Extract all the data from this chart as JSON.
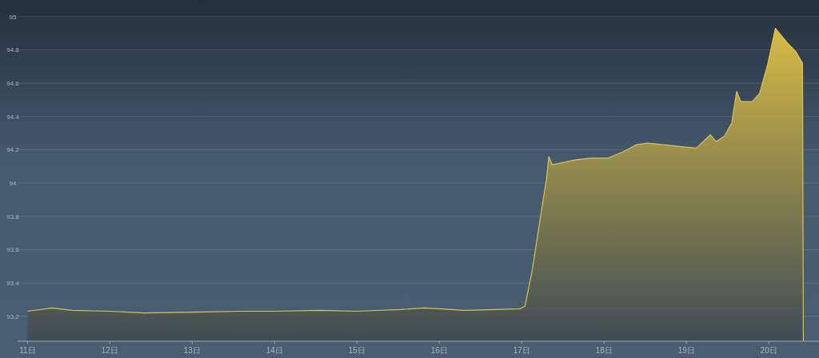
{
  "chart_data": {
    "type": "area",
    "grid": "y",
    "xlim": [
      10.88,
      20.61
    ],
    "ylim": [
      93.05,
      95.1
    ],
    "xticks": [
      {
        "value": 11,
        "label": "11日"
      },
      {
        "value": 12,
        "label": "12日"
      },
      {
        "value": 13,
        "label": "13日"
      },
      {
        "value": 14,
        "label": "14日"
      },
      {
        "value": 15,
        "label": "15日"
      },
      {
        "value": 16,
        "label": "16日"
      },
      {
        "value": 17,
        "label": "17日"
      },
      {
        "value": 18,
        "label": "18日"
      },
      {
        "value": 19,
        "label": "19日"
      },
      {
        "value": 20,
        "label": "20日"
      }
    ],
    "yticks": [
      93.2,
      93.4,
      93.6,
      93.8,
      94,
      94.2,
      94.4,
      94.6,
      94.8,
      95
    ],
    "x": [
      11.0,
      11.3,
      11.54,
      12.0,
      12.42,
      13.0,
      13.58,
      14.0,
      14.55,
      15.0,
      15.52,
      15.82,
      16.0,
      16.3,
      16.69,
      16.98,
      17.04,
      17.13,
      17.22,
      17.3,
      17.33,
      17.37,
      17.47,
      17.66,
      17.85,
      18.05,
      18.24,
      18.39,
      18.53,
      18.73,
      18.92,
      19.12,
      19.29,
      19.36,
      19.46,
      19.55,
      19.61,
      19.66,
      19.8,
      19.89,
      19.99,
      20.08,
      20.23,
      20.33,
      20.41,
      20.42
    ],
    "series": [
      {
        "color": "#e0c244",
        "values": [
          93.23,
          93.25,
          93.235,
          93.23,
          93.22,
          93.225,
          93.23,
          93.23,
          93.235,
          93.23,
          93.24,
          93.25,
          93.245,
          93.235,
          93.24,
          93.245,
          93.26,
          93.48,
          93.77,
          94.02,
          94.16,
          94.11,
          94.12,
          94.14,
          94.15,
          94.15,
          94.19,
          94.23,
          94.24,
          94.23,
          94.22,
          94.21,
          94.29,
          94.25,
          94.28,
          94.36,
          94.55,
          94.49,
          94.49,
          94.54,
          94.72,
          94.93,
          94.84,
          94.79,
          94.72,
          93.05
        ]
      }
    ]
  }
}
